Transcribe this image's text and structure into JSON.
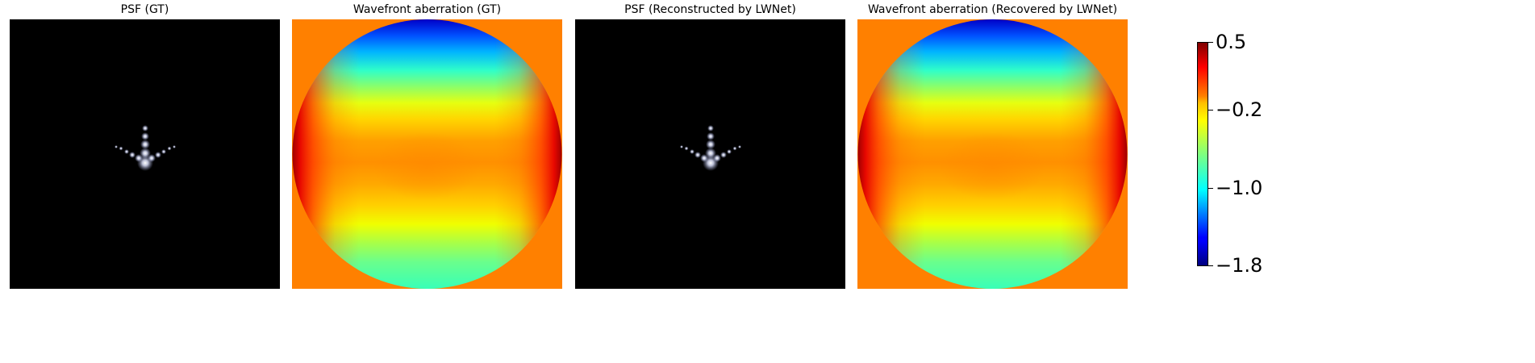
{
  "chart_data": [
    {
      "type": "heatmap",
      "title": "PSF (GT)",
      "colormap": "gray",
      "content": "psf"
    },
    {
      "type": "heatmap",
      "title": "Wavefront aberration (GT)",
      "colormap": "jet",
      "content": "wavefront"
    },
    {
      "type": "heatmap",
      "title": "PSF (Reconstructed by LWNet)",
      "colormap": "gray",
      "content": "psf"
    },
    {
      "type": "heatmap",
      "title": "Wavefront aberration (Recovered by LWNet)",
      "colormap": "jet",
      "content": "wavefront"
    }
  ],
  "colorbar": {
    "colormap": "jet",
    "range": [
      -1.8,
      0.5
    ],
    "ticks": [
      {
        "value": 0.5,
        "label": "0.5"
      },
      {
        "value": -0.2,
        "label": "−0.2"
      },
      {
        "value": -1.0,
        "label": "−1.0"
      },
      {
        "value": -1.8,
        "label": "−1.8"
      }
    ]
  },
  "colors": {
    "background_out": "#ff8000",
    "psf_background": "#000000"
  }
}
